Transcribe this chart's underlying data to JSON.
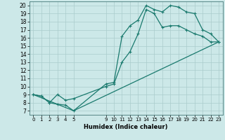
{
  "xlabel": "Humidex (Indice chaleur)",
  "xlim": [
    -0.5,
    23.5
  ],
  "ylim": [
    6.5,
    20.5
  ],
  "xticks": [
    0,
    1,
    2,
    3,
    4,
    5,
    9,
    10,
    11,
    12,
    13,
    14,
    15,
    16,
    17,
    18,
    19,
    20,
    21,
    22,
    23
  ],
  "yticks": [
    7,
    8,
    9,
    10,
    11,
    12,
    13,
    14,
    15,
    16,
    17,
    18,
    19,
    20
  ],
  "background_color": "#cce8e8",
  "grid_color": "#aacccc",
  "line_color": "#1a7a6e",
  "line1_x": [
    0,
    1,
    2,
    3,
    4,
    5,
    9,
    10,
    11,
    12,
    13,
    14,
    15,
    16,
    17,
    18,
    19,
    20,
    21,
    22,
    23
  ],
  "line1_y": [
    9.0,
    8.8,
    8.0,
    7.8,
    7.7,
    7.0,
    10.3,
    10.5,
    16.2,
    17.5,
    18.2,
    20.0,
    19.5,
    19.2,
    20.0,
    19.8,
    19.2,
    19.0,
    17.0,
    16.5,
    15.5
  ],
  "line2_x": [
    0,
    1,
    2,
    3,
    4,
    5,
    9,
    10,
    11,
    12,
    13,
    14,
    15,
    16,
    17,
    18,
    19,
    20,
    21,
    22,
    23
  ],
  "line2_y": [
    9.0,
    8.8,
    8.0,
    9.0,
    8.3,
    8.5,
    10.0,
    10.3,
    13.0,
    14.3,
    16.5,
    19.5,
    19.0,
    17.3,
    17.5,
    17.5,
    17.0,
    16.5,
    16.2,
    15.5,
    15.5
  ],
  "line3_x": [
    0,
    5,
    23
  ],
  "line3_y": [
    9.0,
    7.0,
    15.5
  ]
}
